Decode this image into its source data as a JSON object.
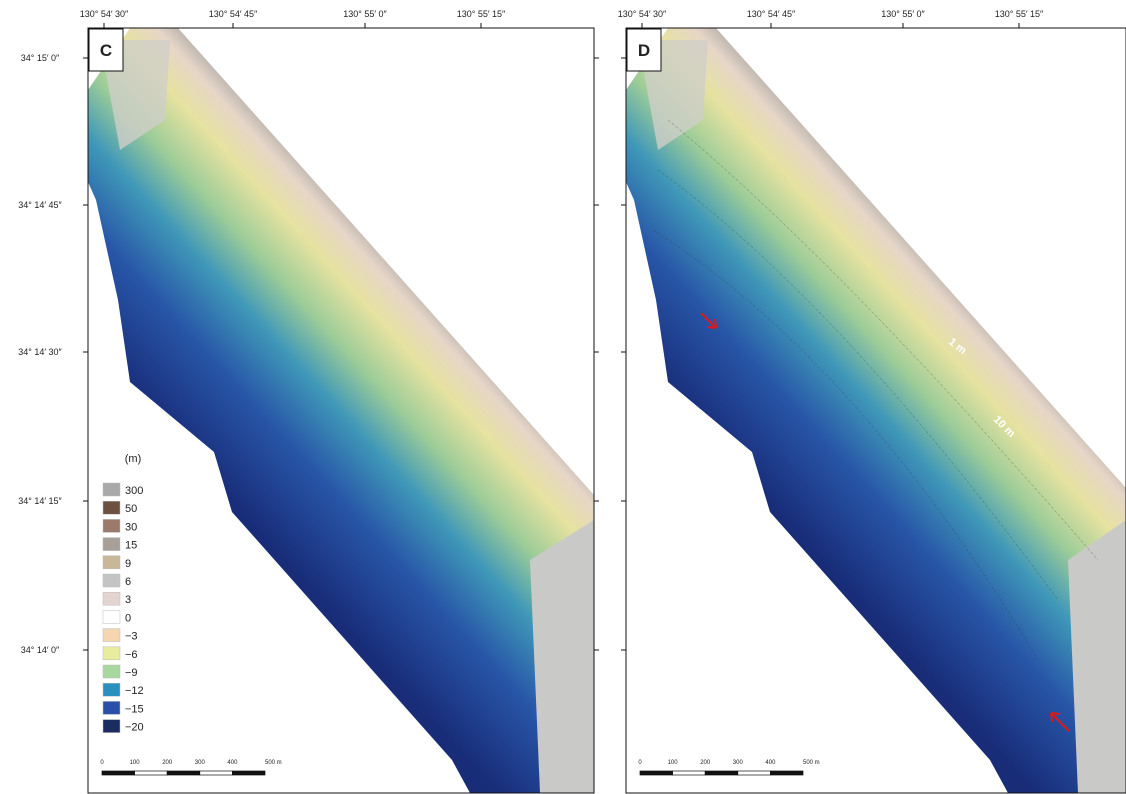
{
  "longitude_labels": [
    "130° 54′ 30″",
    "130° 54′ 45″",
    "130° 55′ 0″",
    "130° 55′ 15″"
  ],
  "latitude_labels": [
    "34° 15′ 0″",
    "34° 14′ 45″",
    "34° 14′ 30″",
    "34° 14′ 15″",
    "34° 14′ 0″"
  ],
  "panels": [
    {
      "label": "C"
    },
    {
      "label": "D",
      "annotations": [
        "1 m",
        "10 m"
      ]
    }
  ],
  "legend": {
    "unit": "(m)",
    "items": [
      {
        "label": "300",
        "color": "#a9a9a9"
      },
      {
        "label": "50",
        "color": "#6e5040"
      },
      {
        "label": "30",
        "color": "#9a7a6a"
      },
      {
        "label": "15",
        "color": "#a8a098"
      },
      {
        "label": "9",
        "color": "#c8b898"
      },
      {
        "label": "6",
        "color": "#c4c4c4"
      },
      {
        "label": "3",
        "color": "#e4d4d0"
      },
      {
        "label": "0",
        "color": "#ffffff"
      },
      {
        "label": "−3",
        "color": "#f6d6b0"
      },
      {
        "label": "−6",
        "color": "#e8ec9c"
      },
      {
        "label": "−9",
        "color": "#a8d8a0"
      },
      {
        "label": "−12",
        "color": "#2a90c0"
      },
      {
        "label": "−15",
        "color": "#2850a8"
      },
      {
        "label": "−20",
        "color": "#1a2c60"
      }
    ]
  },
  "scale_bar": {
    "labels": [
      "0",
      "100",
      "200",
      "300",
      "400",
      "500 m"
    ]
  }
}
